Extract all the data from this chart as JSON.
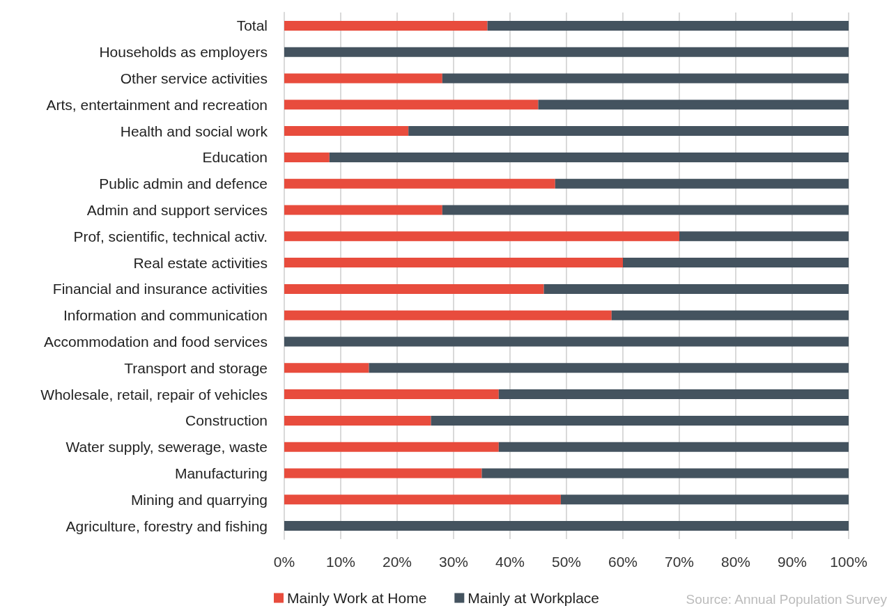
{
  "chart_data": {
    "type": "bar",
    "orientation": "horizontal",
    "stacked": true,
    "categories": [
      "Total",
      "Households as employers",
      "Other service activities",
      "Arts, entertainment and recreation",
      "Health and social work",
      "Education",
      "Public admin and defence",
      "Admin and support services",
      "Prof, scientific, technical activ.",
      "Real estate activities",
      "Financial and insurance activities",
      "Information and communication",
      "Accommodation and food services",
      "Transport and storage",
      "Wholesale, retail, repair of vehicles",
      "Construction",
      "Water supply, sewerage, waste",
      "Manufacturing",
      "Mining and quarrying",
      "Agriculture, forestry and fishing"
    ],
    "series": [
      {
        "name": "Mainly Work at Home",
        "color": "#e84c3d",
        "values": [
          36,
          0,
          28,
          45,
          22,
          8,
          48,
          28,
          70,
          60,
          46,
          58,
          0,
          15,
          38,
          26,
          38,
          35,
          49,
          0
        ]
      },
      {
        "name": "Mainly at Workplace",
        "color": "#44535f",
        "values": [
          64,
          100,
          72,
          55,
          78,
          92,
          52,
          72,
          30,
          40,
          54,
          42,
          100,
          85,
          62,
          74,
          62,
          65,
          51,
          100
        ]
      }
    ],
    "xlim": [
      0,
      100
    ],
    "xticks": [
      {
        "value": 0,
        "label": "0%"
      },
      {
        "value": 10,
        "label": "10%"
      },
      {
        "value": 20,
        "label": "20%"
      },
      {
        "value": 30,
        "label": "30%"
      },
      {
        "value": 40,
        "label": "40%"
      },
      {
        "value": 50,
        "label": "50%"
      },
      {
        "value": 60,
        "label": "60%"
      },
      {
        "value": 70,
        "label": "70%"
      },
      {
        "value": 80,
        "label": "80%"
      },
      {
        "value": 90,
        "label": "90%"
      },
      {
        "value": 100,
        "label": "100%"
      }
    ],
    "grid": "x",
    "legend": "bottom",
    "annotations": [
      "Source: Annual Population Survey"
    ]
  }
}
